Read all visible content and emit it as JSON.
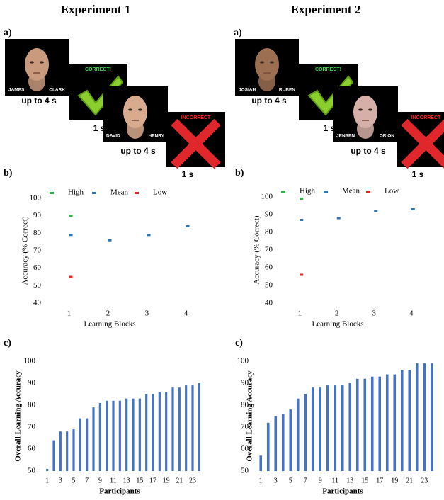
{
  "experiments": [
    {
      "title": "Experiment 1",
      "panel_label": "a)",
      "screens": [
        {
          "left": "JAMES",
          "right": "CLARK"
        },
        {
          "banner": "CORRECT!"
        },
        {
          "left": "DAVID",
          "right": "HENRY"
        },
        {
          "banner": "INCORRECT"
        }
      ],
      "durations": [
        "up to 4 s",
        "1 s",
        "up to 4 s",
        "1 s"
      ]
    },
    {
      "title": "Experiment 2",
      "panel_label": "a)",
      "screens": [
        {
          "left": "JOSIAH",
          "right": "RUBEN"
        },
        {
          "banner": "CORRECT!"
        },
        {
          "left": "JENSEN",
          "right": "ORION"
        },
        {
          "banner": "INCORRECT"
        }
      ],
      "durations": [
        "up to 4 s",
        "1 s",
        "up to 4 s",
        "1 s"
      ]
    }
  ],
  "chart_data": [
    {
      "type": "scatter",
      "panel_label": "b)",
      "x_label": "Learning Blocks",
      "y_label": "Accuracy (% Correct)",
      "x": [
        1,
        2,
        3,
        4
      ],
      "xlim": [
        0.5,
        4.5
      ],
      "xticks": [
        1,
        2,
        3,
        4
      ],
      "ylim": [
        40,
        100
      ],
      "yticks": [
        40,
        50,
        60,
        70,
        80,
        90,
        100
      ],
      "legend": "top",
      "series": [
        {
          "name": "High",
          "color": "#2db34a",
          "values": [
            90,
            null,
            null,
            null
          ]
        },
        {
          "name": "Mean",
          "color": "#2e75b6",
          "values": [
            79,
            76,
            79,
            84
          ]
        },
        {
          "name": "Low",
          "color": "#e8262a",
          "values": [
            55,
            null,
            null,
            null
          ]
        }
      ]
    },
    {
      "type": "scatter",
      "panel_label": "b)",
      "x_label": "Learning Blocks",
      "y_label": "Accuracy (% Correct)",
      "x": [
        1,
        2,
        3,
        4
      ],
      "xlim": [
        0.5,
        4.5
      ],
      "xticks": [
        1,
        2,
        3,
        4
      ],
      "ylim": [
        40,
        100
      ],
      "yticks": [
        40,
        50,
        60,
        70,
        80,
        90,
        100
      ],
      "legend": "top",
      "series": [
        {
          "name": "High",
          "color": "#2db34a",
          "values": [
            99,
            null,
            null,
            null
          ]
        },
        {
          "name": "Mean",
          "color": "#2e75b6",
          "values": [
            87,
            88,
            92,
            93
          ]
        },
        {
          "name": "Low",
          "color": "#e8262a",
          "values": [
            56,
            null,
            null,
            null
          ]
        }
      ]
    },
    {
      "type": "bar",
      "panel_label": "c)",
      "x_label": "Participants",
      "y_label": "Overall Learning Accuracy",
      "color": "#4472c4",
      "categories": [
        "1",
        null,
        "3",
        null,
        "5",
        null,
        "7",
        null,
        "9",
        null,
        "11",
        null,
        "13",
        null,
        "15",
        null,
        "17",
        null,
        "19",
        null,
        "21",
        null,
        "23",
        null
      ],
      "values": [
        51,
        64,
        68,
        68,
        69,
        74,
        74,
        79,
        81,
        82,
        82,
        82,
        83,
        83,
        83,
        85,
        85,
        86,
        86,
        88,
        88,
        89,
        89,
        90
      ],
      "ylim": [
        50,
        100
      ],
      "yticks": [
        50,
        60,
        70,
        80,
        90,
        100
      ]
    },
    {
      "type": "bar",
      "panel_label": "c)",
      "x_label": "Participants",
      "y_label": "Overall Learning Accuracy",
      "color": "#4472c4",
      "categories": [
        "1",
        null,
        "3",
        null,
        "5",
        null,
        "7",
        null,
        "9",
        null,
        "11",
        null,
        "13",
        null,
        "15",
        null,
        "17",
        null,
        "19",
        null,
        "21",
        null,
        "23",
        null
      ],
      "values": [
        57,
        72,
        75,
        76,
        78,
        83,
        85,
        88,
        88,
        89,
        89,
        89,
        90,
        92,
        92,
        93,
        93,
        94,
        94,
        96,
        96,
        99,
        99,
        99
      ],
      "ylim": [
        50,
        100
      ],
      "yticks": [
        50,
        60,
        70,
        80,
        90,
        100
      ]
    }
  ]
}
